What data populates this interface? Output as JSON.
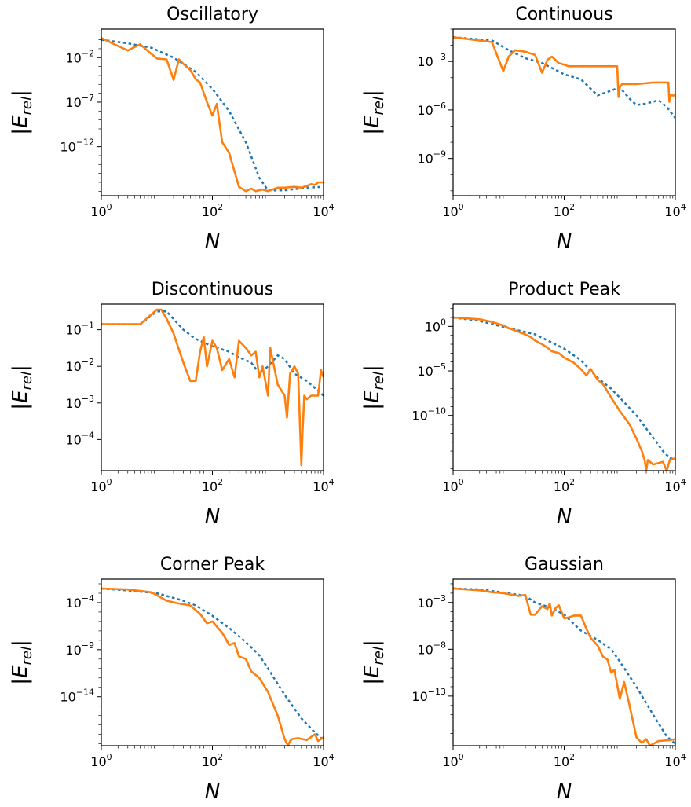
{
  "colors": {
    "dotted_series": "#1f77b4",
    "solid_series": "#ff7f0e"
  },
  "chart_data": [
    {
      "type": "line",
      "title": "Oscillatory",
      "xlabel": "N",
      "ylabel": "|E_rel|",
      "xscale": "log",
      "yscale": "log",
      "xlim": [
        1,
        10000
      ],
      "ylim_exp": [
        -17.5,
        1.2
      ],
      "xticks": [
        "10^0",
        "10^2",
        "10^4"
      ],
      "yticks": [
        "10^-2",
        "10^-7",
        "10^-12"
      ],
      "ytick_exp": [
        -2,
        -7,
        -12
      ],
      "grid": false,
      "series": [
        {
          "style": "dotted",
          "x": [
            1,
            3,
            8,
            20,
            50,
            100,
            200,
            400,
            700,
            1000,
            2000,
            5000,
            10000
          ],
          "y_exp": [
            0,
            -0.4,
            -0.9,
            -2,
            -3.6,
            -5.5,
            -8,
            -11.5,
            -15.5,
            -16.9,
            -16.9,
            -16.6,
            -16.5
          ]
        },
        {
          "style": "solid",
          "x": [
            1,
            2,
            3,
            5,
            8,
            10,
            15,
            20,
            25,
            30,
            40,
            50,
            60,
            80,
            100,
            120,
            150,
            200,
            300,
            400,
            500,
            600,
            800,
            1000,
            1500,
            2000,
            3000,
            4000,
            5000,
            6000,
            7000,
            8000,
            10000
          ],
          "y_exp": [
            0.2,
            -0.7,
            -1.2,
            -0.5,
            -1.6,
            -2.1,
            -2.2,
            -4.5,
            -2.2,
            -2.7,
            -3.4,
            -4.4,
            -4.8,
            -7,
            -8.5,
            -7.2,
            -11.5,
            -12.7,
            -16.5,
            -17,
            -16.7,
            -17,
            -16.8,
            -17,
            -16.6,
            -16.6,
            -16.5,
            -16.6,
            -16.4,
            -16.2,
            -16.3,
            -16,
            -16
          ]
        }
      ]
    },
    {
      "type": "line",
      "title": "Continuous",
      "xlabel": "N",
      "ylabel": "|E_rel|",
      "xscale": "log",
      "yscale": "log",
      "xlim": [
        1,
        10000
      ],
      "ylim_exp": [
        -11.3,
        -1
      ],
      "xticks": [
        "10^0",
        "10^2",
        "10^4"
      ],
      "yticks": [
        "10^-3",
        "10^-6",
        "10^-9"
      ],
      "ytick_exp": [
        -3,
        -6,
        -9
      ],
      "grid": false,
      "series": [
        {
          "style": "dotted",
          "x": [
            1,
            5,
            10,
            20,
            40,
            60,
            100,
            200,
            400,
            700,
            1000,
            1500,
            2000,
            3000,
            5000,
            7000,
            10000
          ],
          "y_exp": [
            -1.5,
            -1.7,
            -2.3,
            -2.8,
            -3.1,
            -3.4,
            -3.8,
            -4.1,
            -5.1,
            -4.8,
            -4.6,
            -5.3,
            -5.7,
            -5.6,
            -5.4,
            -5.8,
            -6.5
          ]
        },
        {
          "style": "solid",
          "x": [
            1,
            5,
            8,
            10,
            13,
            20,
            30,
            40,
            50,
            60,
            80,
            100,
            120,
            200,
            400,
            900,
            950,
            1000,
            1100,
            2000,
            4000,
            7500,
            7800,
            8000,
            10000
          ],
          "y_exp": [
            -1.5,
            -1.8,
            -3.6,
            -2.7,
            -2.3,
            -2.4,
            -2.6,
            -3.7,
            -2.9,
            -2.7,
            -3.1,
            -3.2,
            -3.3,
            -3.3,
            -3.3,
            -3.3,
            -5.2,
            -4.6,
            -4.4,
            -4.4,
            -4.3,
            -4.3,
            -5.5,
            -5.1,
            -5.1
          ]
        }
      ]
    },
    {
      "type": "line",
      "title": "Discontinuous",
      "xlabel": "N",
      "ylabel": "|E_rel|",
      "xscale": "log",
      "yscale": "log",
      "xlim": [
        1,
        10000
      ],
      "ylim_exp": [
        -4.85,
        -0.3
      ],
      "xticks": [
        "10^0",
        "10^2",
        "10^4"
      ],
      "yticks": [
        "10^-1",
        "10^-2",
        "10^-3",
        "10^-4"
      ],
      "ytick_exp": [
        -1,
        -2,
        -3,
        -4
      ],
      "grid": false,
      "series": [
        {
          "style": "dotted",
          "x": [
            1,
            5,
            10,
            15,
            30,
            50,
            100,
            200,
            300,
            500,
            700,
            1000,
            1500,
            2000,
            3000,
            5000,
            10000
          ],
          "y_exp": [
            -0.85,
            -0.85,
            -0.5,
            -0.5,
            -1.0,
            -1.25,
            -1.45,
            -1.6,
            -1.75,
            -1.9,
            -2.2,
            -2.0,
            -1.7,
            -1.8,
            -2.2,
            -2.4,
            -2.8
          ]
        },
        {
          "style": "solid",
          "x": [
            1,
            5,
            10,
            12,
            15,
            20,
            30,
            40,
            50,
            60,
            70,
            80,
            100,
            120,
            150,
            200,
            250,
            300,
            400,
            500,
            600,
            700,
            800,
            1000,
            1100,
            1500,
            2000,
            2200,
            2500,
            3000,
            3500,
            4000,
            4200,
            4500,
            5000,
            6000,
            8000,
            9000,
            10000
          ],
          "y_exp": [
            -0.85,
            -0.85,
            -0.45,
            -0.45,
            -0.7,
            -1.1,
            -1.9,
            -2.4,
            -2.4,
            -1.6,
            -1.2,
            -2.0,
            -1.3,
            -1.5,
            -2.1,
            -1.8,
            -2.3,
            -1.3,
            -1.5,
            -1.7,
            -1.6,
            -2.3,
            -2.0,
            -2.8,
            -1.5,
            -2.5,
            -2.8,
            -3.4,
            -2.2,
            -2.0,
            -2.2,
            -4.7,
            -3.8,
            -2.8,
            -2.9,
            -2.8,
            -2.8,
            -2.1,
            -2.3
          ]
        }
      ]
    },
    {
      "type": "line",
      "title": "Product Peak",
      "xlabel": "N",
      "ylabel": "|E_rel|",
      "xscale": "log",
      "yscale": "log",
      "xlim": [
        1,
        10000
      ],
      "ylim_exp": [
        -16.2,
        2.5
      ],
      "xticks": [
        "10^0",
        "10^2",
        "10^4"
      ],
      "yticks": [
        "10^0",
        "10^-5",
        "10^-10"
      ],
      "ytick_exp": [
        0,
        -5,
        -10
      ],
      "grid": false,
      "series": [
        {
          "style": "dotted",
          "x": [
            1,
            3,
            10,
            30,
            100,
            200,
            400,
            700,
            1000,
            2000,
            4000,
            6000,
            8000,
            10000
          ],
          "y_exp": [
            1.0,
            0.6,
            -0.2,
            -0.9,
            -2.5,
            -3.8,
            -5.8,
            -7.0,
            -8.0,
            -10.0,
            -12.5,
            -14.0,
            -14.8,
            -14.9
          ]
        },
        {
          "style": "solid",
          "x": [
            1,
            3,
            5,
            8,
            10,
            15,
            20,
            25,
            30,
            40,
            50,
            60,
            80,
            100,
            150,
            200,
            250,
            300,
            400,
            500,
            700,
            1000,
            1500,
            2000,
            2500,
            2800,
            3000,
            3200,
            4000,
            6000,
            7000,
            8000,
            10000
          ],
          "y_exp": [
            1.0,
            0.8,
            0.5,
            0.1,
            -0.2,
            -0.6,
            -0.9,
            -1.2,
            -1.6,
            -2.0,
            -2.4,
            -2.8,
            -3.0,
            -3.5,
            -4.1,
            -4.8,
            -5.5,
            -4.8,
            -6.0,
            -6.5,
            -8.0,
            -9.5,
            -11.0,
            -12.6,
            -14.0,
            -15.0,
            -16.2,
            -15.0,
            -15.5,
            -15.2,
            -16.2,
            -15.0,
            -14.8
          ]
        }
      ]
    },
    {
      "type": "line",
      "title": "Corner Peak",
      "xlabel": "N",
      "ylabel": "|E_rel|",
      "xscale": "log",
      "yscale": "log",
      "xlim": [
        1,
        10000
      ],
      "ylim_exp": [
        -19.2,
        -1.5
      ],
      "xticks": [
        "10^0",
        "10^2",
        "10^4"
      ],
      "yticks": [
        "10^-4",
        "10^-9",
        "10^-14"
      ],
      "ytick_exp": [
        -4,
        -9,
        -14
      ],
      "grid": false,
      "series": [
        {
          "style": "dotted",
          "x": [
            1,
            3,
            10,
            30,
            50,
            100,
            200,
            400,
            700,
            1000,
            2000,
            4000,
            7000,
            10000
          ],
          "y_exp": [
            -2.5,
            -2.7,
            -3.0,
            -3.8,
            -4.3,
            -5.4,
            -6.7,
            -8.2,
            -9.6,
            -11.0,
            -13.8,
            -16.3,
            -17.8,
            -18.6
          ]
        },
        {
          "style": "solid",
          "x": [
            1,
            3,
            8,
            15,
            25,
            40,
            60,
            80,
            100,
            150,
            200,
            250,
            300,
            400,
            500,
            700,
            1000,
            1500,
            2000,
            2300,
            2500,
            2700,
            3500,
            5000,
            7000,
            8000,
            10000
          ],
          "y_exp": [
            -2.5,
            -2.6,
            -2.9,
            -3.8,
            -4.1,
            -4.3,
            -5.2,
            -6.2,
            -6.0,
            -7.2,
            -8.5,
            -8.3,
            -9.7,
            -10.0,
            -11.3,
            -12.0,
            -13.5,
            -16.0,
            -18.5,
            -19.2,
            -18.7,
            -18.5,
            -18.4,
            -18.6,
            -18.0,
            -18.7,
            -18.3
          ]
        }
      ]
    },
    {
      "type": "line",
      "title": "Gaussian",
      "xlabel": "N",
      "ylabel": "|E_rel|",
      "xscale": "log",
      "yscale": "log",
      "xlim": [
        1,
        10000
      ],
      "ylim_exp": [
        -18.3,
        -0.5
      ],
      "xticks": [
        "10^0",
        "10^2",
        "10^4"
      ],
      "yticks": [
        "10^-3",
        "10^-8",
        "10^-13"
      ],
      "ytick_exp": [
        -3,
        -8,
        -13
      ],
      "grid": false,
      "series": [
        {
          "style": "dotted",
          "x": [
            1,
            3,
            10,
            20,
            30,
            60,
            100,
            200,
            400,
            700,
            1000,
            2000,
            4000,
            7000,
            10000
          ],
          "y_exp": [
            -1.5,
            -1.6,
            -2.0,
            -2.3,
            -3.0,
            -3.6,
            -4.3,
            -6.0,
            -7.0,
            -8.0,
            -9.3,
            -12.0,
            -15.0,
            -17.3,
            -18.1
          ]
        },
        {
          "style": "solid",
          "x": [
            1,
            3,
            5,
            8,
            15,
            20,
            25,
            30,
            40,
            50,
            55,
            60,
            70,
            80,
            100,
            120,
            150,
            200,
            250,
            300,
            400,
            500,
            600,
            700,
            800,
            1000,
            1200,
            1500,
            2000,
            2500,
            3000,
            3500,
            5000,
            8000,
            10000
          ],
          "y_exp": [
            -1.5,
            -1.7,
            -1.9,
            -2.0,
            -2.3,
            -2.2,
            -4.3,
            -4.3,
            -3.4,
            -3.7,
            -3.1,
            -4.4,
            -3.6,
            -3.3,
            -4.7,
            -4.6,
            -4.4,
            -4.4,
            -5.8,
            -6.8,
            -7.6,
            -8.8,
            -9.1,
            -10.5,
            -10.2,
            -13.3,
            -11.5,
            -14.0,
            -17.4,
            -18.0,
            -17.6,
            -18.3,
            -17.8,
            -17.7,
            -17.6
          ]
        }
      ]
    }
  ]
}
